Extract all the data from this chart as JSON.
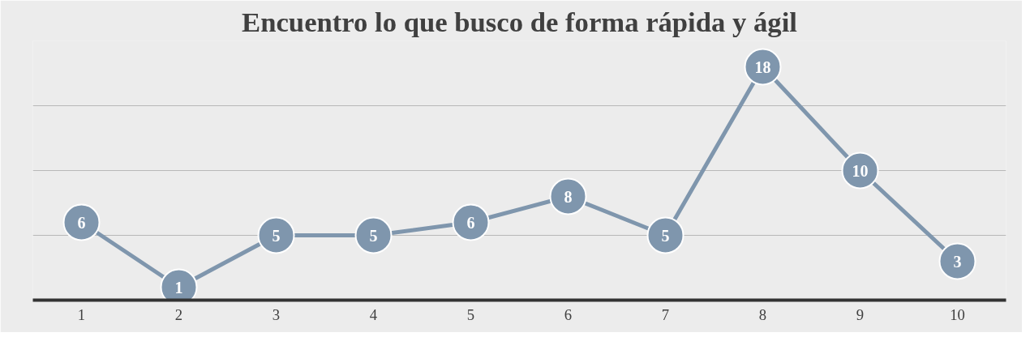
{
  "chart_data": {
    "type": "line",
    "title": "Encuentro lo que busco de forma rápida y ágil",
    "categories": [
      "1",
      "2",
      "3",
      "4",
      "5",
      "6",
      "7",
      "8",
      "9",
      "10"
    ],
    "series": [
      {
        "color": "#7f96ad",
        "values": [
          6,
          1,
          5,
          5,
          6,
          8,
          5,
          18,
          10,
          3
        ]
      }
    ],
    "ylim": [
      0,
      20
    ],
    "yticks": [
      {
        "value": 0,
        "label": null
      },
      {
        "value": 5,
        "label": null
      },
      {
        "value": 10,
        "label": null
      },
      {
        "value": 15,
        "label": null
      },
      {
        "value": 20,
        "label": null
      }
    ],
    "tick_labels": "x",
    "grid": "y",
    "marker": "circle",
    "line_style": "solid",
    "data_labels": true
  }
}
